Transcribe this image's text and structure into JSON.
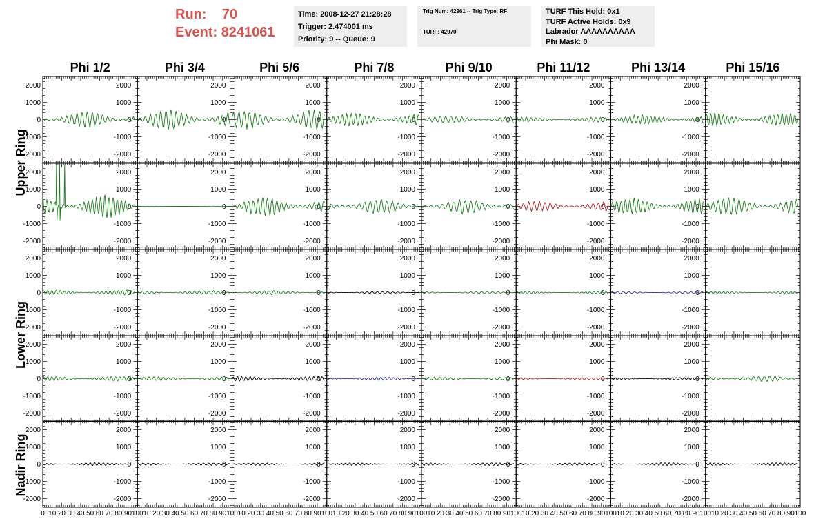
{
  "header": {
    "run_label": "Run:",
    "run_value": "70",
    "event_label": "Event:",
    "event_value": "8241061",
    "time_box": {
      "line1": "Time: 2008-12-27 21:28:28",
      "line2": "Trigger: 2.474001 ms",
      "line3": "Priority: 9 -- Queue: 9"
    },
    "trig_box": {
      "line1": "Trig Num: 42961 -- Trig Type: RF",
      "line2": "TURF: 42970"
    },
    "turf_box": {
      "line1": "TURF This Hold: 0x1",
      "line2": "TURF Active Holds: 0x9",
      "line3": "Labrador AAAAAAAAAA",
      "line4": "Phi Mask: 0"
    }
  },
  "chart_data": {
    "type": "line",
    "columns": [
      "Phi 1/2",
      "Phi 3/4",
      "Phi 5/6",
      "Phi 7/8",
      "Phi 9/10",
      "Phi 11/12",
      "Phi 13/14",
      "Phi 15/16"
    ],
    "ring_labels": [
      "Upper Ring",
      "Lower Ring",
      "Nadir Ring"
    ],
    "xlim": [
      0,
      100
    ],
    "ylim": [
      -2500,
      2500
    ],
    "x_ticks": [
      0,
      10,
      20,
      30,
      40,
      50,
      60,
      70,
      80,
      90,
      100
    ],
    "y_ticks": [
      2000,
      1000,
      0,
      -1000,
      -2000
    ],
    "colors": {
      "green": "#1a7a1a",
      "black": "#000000",
      "red": "#b21d1d",
      "blue": "#2a2a9a"
    },
    "rows": [
      [
        {
          "color": "green",
          "amp": 500
        },
        {
          "color": "green",
          "amp": 600
        },
        {
          "color": "green",
          "amp": 600
        },
        {
          "color": "green",
          "amp": 400
        },
        {
          "color": "green",
          "amp": 250
        },
        {
          "color": "green",
          "amp": 150
        },
        {
          "color": "green",
          "amp": 300
        },
        {
          "color": "green",
          "amp": 400
        }
      ],
      [
        {
          "color": "green",
          "amp": 700,
          "spikes": true
        },
        {
          "color": "green",
          "amp": 15
        },
        {
          "color": "green",
          "amp": 600
        },
        {
          "color": "green",
          "amp": 450
        },
        {
          "color": "green",
          "amp": 450
        },
        {
          "color": "red",
          "amp": 300
        },
        {
          "color": "green",
          "amp": 500
        },
        {
          "color": "green",
          "amp": 550
        }
      ],
      [
        {
          "color": "green",
          "amp": 150
        },
        {
          "color": "green",
          "amp": 120
        },
        {
          "color": "green",
          "amp": 120
        },
        {
          "color": "black",
          "amp": 70
        },
        {
          "color": "green",
          "amp": 70
        },
        {
          "color": "green",
          "amp": 60
        },
        {
          "color": "blue",
          "amp": 70
        },
        {
          "color": "green",
          "amp": 70
        }
      ],
      [
        {
          "color": "green",
          "amp": 150
        },
        {
          "color": "green",
          "amp": 120
        },
        {
          "color": "black",
          "amp": 150
        },
        {
          "color": "blue",
          "amp": 100
        },
        {
          "color": "green",
          "amp": 100
        },
        {
          "color": "red",
          "amp": 70
        },
        {
          "color": "black",
          "amp": 80
        },
        {
          "color": "green",
          "amp": 180
        }
      ],
      [
        {
          "color": "black",
          "amp": 100
        },
        {
          "color": "black",
          "amp": 80
        },
        {
          "color": "black",
          "amp": 80
        },
        {
          "color": "black",
          "amp": 80
        },
        {
          "color": "black",
          "amp": 90
        },
        {
          "color": "black",
          "amp": 90
        },
        {
          "color": "black",
          "amp": 90
        },
        {
          "color": "black",
          "amp": 90
        }
      ]
    ]
  }
}
